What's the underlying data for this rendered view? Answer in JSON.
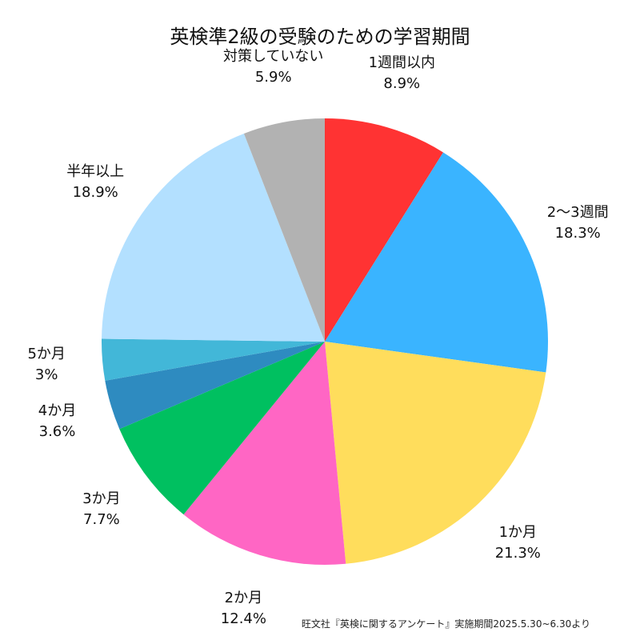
{
  "chart_data": {
    "type": "pie",
    "title": "英検準2級の受験のための学習期間",
    "source": "旺文社『英検に関するアンケート』実施期間2025.5.30~6.30より",
    "start": "12 o'clock",
    "direction": "clockwise",
    "slices": [
      {
        "label": "1週間以内",
        "percent_label": "8.9%",
        "value": 8.9,
        "color": "#FF3333"
      },
      {
        "label": "2〜3週間",
        "percent_label": "18.3%",
        "value": 18.3,
        "color": "#3AB4FF"
      },
      {
        "label": "1か月",
        "percent_label": "21.3%",
        "value": 21.3,
        "color": "#FFDD5C"
      },
      {
        "label": "2か月",
        "percent_label": "12.4%",
        "value": 12.4,
        "color": "#FF66C4"
      },
      {
        "label": "3か月",
        "percent_label": "7.7%",
        "value": 7.7,
        "color": "#00C060"
      },
      {
        "label": "4か月",
        "percent_label": "3.6%",
        "value": 3.6,
        "color": "#2E8BC0"
      },
      {
        "label": "5か月",
        "percent_label": "3%",
        "value": 3.0,
        "color": "#42B7D8"
      },
      {
        "label": "半年以上",
        "percent_label": "18.9%",
        "value": 18.9,
        "color": "#B3E0FF"
      },
      {
        "label": "対策していない",
        "percent_label": "5.9%",
        "value": 5.9,
        "color": "#B2B2B2"
      }
    ]
  }
}
